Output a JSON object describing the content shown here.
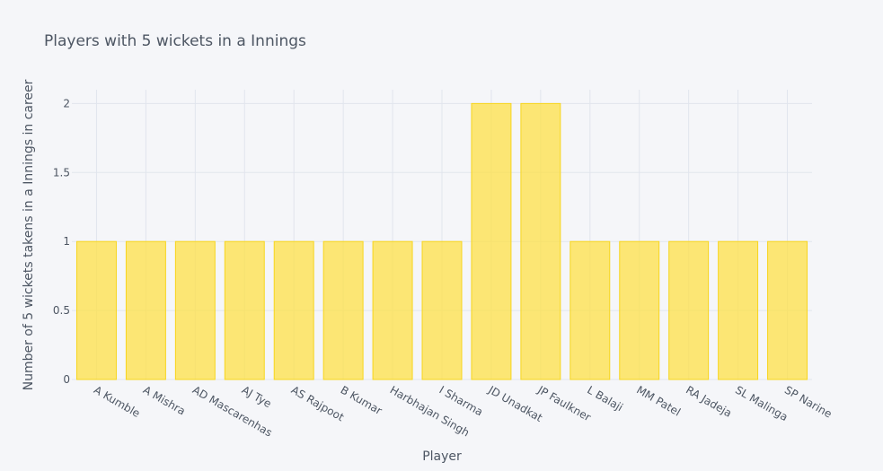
{
  "chart_data": {
    "type": "bar",
    "title": "Players with 5 wickets in a Innings",
    "xlabel": "Player",
    "ylabel": "Number of 5 wickets takens in a Innings in career",
    "categories": [
      "A Kumble",
      "A Mishra",
      "AD Mascarenhas",
      "AJ Tye",
      "AS Rajpoot",
      "B Kumar",
      "Harbhajan Singh",
      "I Sharma",
      "JD Unadkat",
      "JP Faulkner",
      "L Balaji",
      "MM Patel",
      "RA Jadeja",
      "SL Malinga",
      "SP Narine"
    ],
    "values": [
      1,
      1,
      1,
      1,
      1,
      1,
      1,
      1,
      2,
      2,
      1,
      1,
      1,
      1,
      1
    ],
    "yticks": [
      "0",
      "0.5",
      "1",
      "1.5",
      "2"
    ],
    "ylim": [
      0,
      2.1
    ],
    "grid": true,
    "colors": {
      "bar": "#fde047",
      "bar_edge": "#f7d51d",
      "background": "#f5f6f9"
    }
  }
}
